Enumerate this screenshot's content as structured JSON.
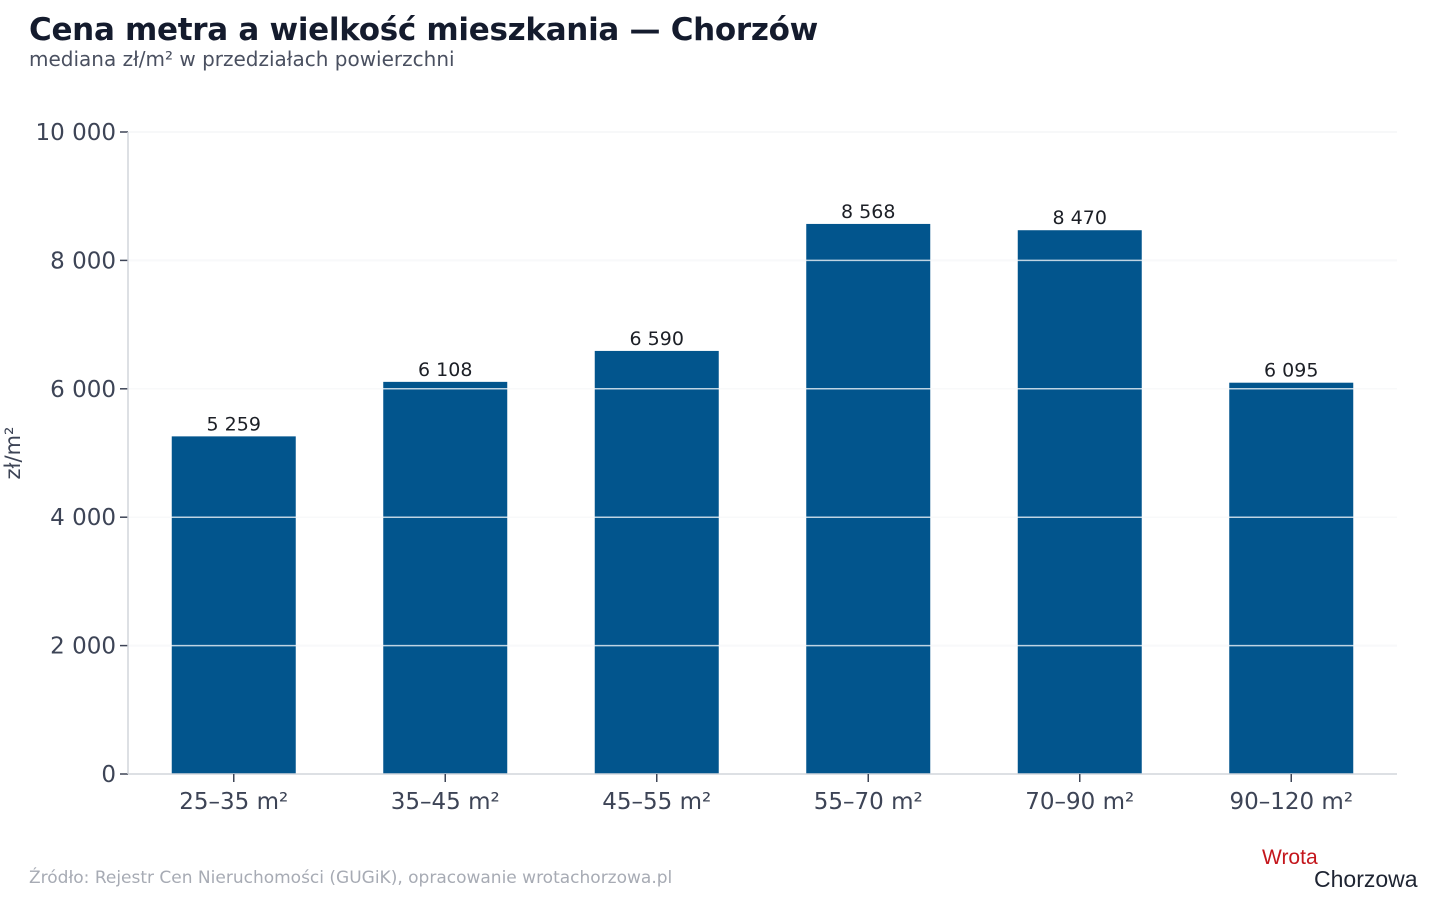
{
  "title": "Cena metra a wielkość mieszkania — Chorzów",
  "subtitle": "mediana zł/m² w przedziałach powierzchni",
  "source": "Źródło: Rejestr Cen Nieruchomości (GUGiK), opracowanie wrotachorzowa.pl",
  "logo": {
    "top": "Wrota",
    "bottom": "Chorzowa"
  },
  "colors": {
    "bar": "#02558d",
    "grid": "#e3e5e9",
    "axis": "#d2d5db",
    "logo_red": "#c4161c"
  },
  "chart_data": {
    "type": "bar",
    "title": "Cena metra a wielkość mieszkania — Chorzów",
    "subtitle": "mediana zł/m² w przedziałach powierzchni",
    "categories": [
      "25–35 m²",
      "35–45 m²",
      "45–55 m²",
      "55–70 m²",
      "70–90 m²",
      "90–120 m²"
    ],
    "values": [
      5259,
      6108,
      6590,
      8568,
      8470,
      6095
    ],
    "value_labels": [
      "5 259",
      "6 108",
      "6 590",
      "8 568",
      "8 470",
      "6 095"
    ],
    "xlabel": "",
    "ylabel": "zł/m²",
    "ylim": [
      0,
      10000
    ],
    "yticks": [
      0,
      2000,
      4000,
      6000,
      8000,
      10000
    ],
    "ytick_labels": [
      "0",
      "2 000",
      "4 000",
      "6 000",
      "8 000",
      "10 000"
    ],
    "grid": true,
    "legend": "none"
  }
}
